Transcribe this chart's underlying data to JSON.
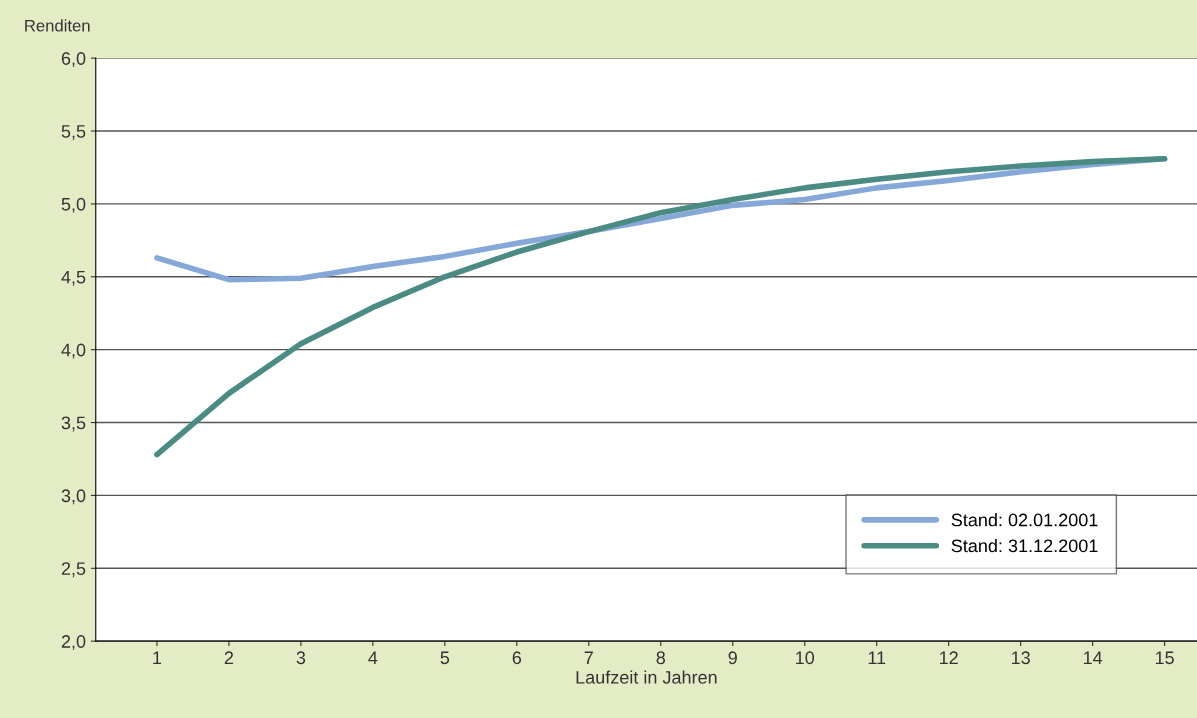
{
  "chart_data": {
    "type": "line",
    "ylabel": "Renditen",
    "xlabel": "Laufzeit in Jahren",
    "categories": [
      "1",
      "2",
      "3",
      "4",
      "5",
      "6",
      "7",
      "8",
      "9",
      "10",
      "11",
      "12",
      "13",
      "14",
      "15"
    ],
    "series": [
      {
        "name": "Stand: 02.01.2001",
        "color": "#86a8d8",
        "values": [
          4.63,
          4.48,
          4.49,
          4.57,
          4.64,
          4.73,
          4.81,
          4.9,
          4.99,
          5.03,
          5.11,
          5.16,
          5.22,
          5.27,
          5.31
        ]
      },
      {
        "name": "Stand: 31.12.2001",
        "color": "#4a8c84",
        "values": [
          3.28,
          3.7,
          4.04,
          4.29,
          4.5,
          4.67,
          4.81,
          4.94,
          5.03,
          5.11,
          5.17,
          5.22,
          5.26,
          5.29,
          5.31
        ]
      }
    ],
    "ylim": [
      2.0,
      6.0
    ],
    "yticks": [
      {
        "value": 2.0,
        "label": "2,0"
      },
      {
        "value": 2.5,
        "label": "2,5"
      },
      {
        "value": 3.0,
        "label": "3,0"
      },
      {
        "value": 3.5,
        "label": "3,5"
      },
      {
        "value": 4.0,
        "label": "4,0"
      },
      {
        "value": 4.5,
        "label": "4,5"
      },
      {
        "value": 5.0,
        "label": "5,0"
      },
      {
        "value": 5.5,
        "label": "5,5"
      },
      {
        "value": 6.0,
        "label": "6,0"
      }
    ],
    "grid": "y",
    "legend": "bottom right",
    "marker": "none",
    "line_style": "solid"
  }
}
